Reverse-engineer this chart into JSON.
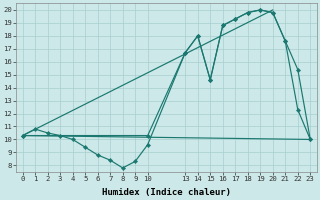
{
  "xlabel": "Humidex (Indice chaleur)",
  "background_color": "#cce8e8",
  "grid_color": "#a8cece",
  "line_color": "#1a7870",
  "xlim": [
    -0.5,
    23.5
  ],
  "ylim": [
    7.5,
    20.5
  ],
  "xticks": [
    0,
    1,
    2,
    3,
    4,
    5,
    6,
    7,
    8,
    9,
    10,
    13,
    14,
    15,
    16,
    17,
    18,
    19,
    20,
    21,
    22,
    23
  ],
  "yticks": [
    8,
    9,
    10,
    11,
    12,
    13,
    14,
    15,
    16,
    17,
    18,
    19,
    20
  ],
  "line1_x": [
    0,
    1,
    2,
    3,
    4,
    5,
    6,
    7,
    8,
    9,
    10,
    13,
    14,
    15,
    16,
    17,
    18,
    19,
    20,
    21,
    22,
    23
  ],
  "line1_y": [
    10.3,
    10.8,
    10.5,
    10.3,
    10.0,
    9.4,
    8.8,
    8.4,
    7.8,
    8.3,
    9.6,
    16.7,
    18.0,
    14.6,
    18.8,
    19.3,
    19.8,
    20.0,
    19.8,
    17.6,
    15.4,
    10.0
  ],
  "line2_x": [
    0,
    23
  ],
  "line2_y": [
    10.3,
    10.0
  ],
  "line3_x": [
    0,
    10,
    13,
    14,
    15,
    16,
    17,
    18,
    19,
    20,
    21,
    22,
    23
  ],
  "line3_y": [
    10.3,
    10.3,
    16.7,
    18.0,
    14.6,
    18.8,
    19.3,
    19.8,
    20.0,
    19.8,
    17.6,
    12.3,
    10.0
  ]
}
